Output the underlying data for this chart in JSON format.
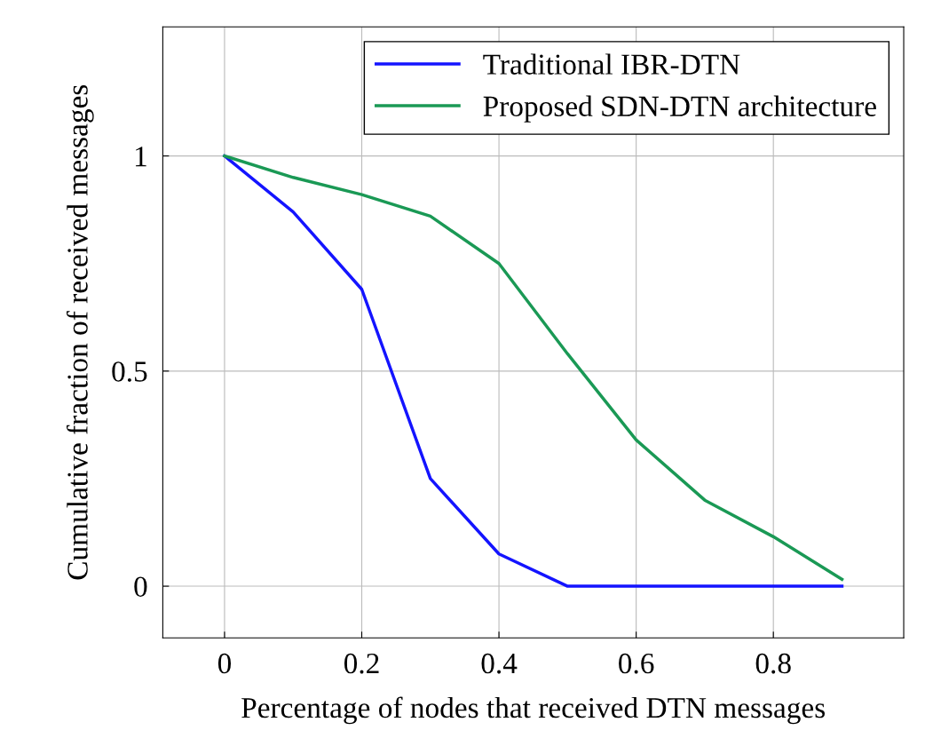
{
  "chart_data": {
    "type": "line",
    "xlabel": "Percentage of nodes that received DTN messages",
    "ylabel": "Cumulative fraction of received messages",
    "x": [
      0,
      0.1,
      0.2,
      0.3,
      0.4,
      0.5,
      0.6,
      0.7,
      0.8,
      0.9
    ],
    "series": [
      {
        "name": "Traditional IBR-DTN",
        "color": "#1414ff",
        "values": [
          1,
          0.87,
          0.69,
          0.25,
          0.075,
          0,
          0,
          0,
          0,
          0
        ]
      },
      {
        "name": "Proposed SDN-DTN architecture",
        "color": "#1a9955",
        "values": [
          1,
          0.95,
          0.91,
          0.86,
          0.75,
          0.54,
          0.34,
          0.2,
          0.115,
          0.016
        ]
      }
    ],
    "xlim": [
      -0.09,
      0.99
    ],
    "ylim": [
      -0.12,
      1.3
    ],
    "xticks": [
      0,
      0.2,
      0.4,
      0.6,
      0.8
    ],
    "yticks": [
      0,
      0.5,
      1
    ],
    "grid": true,
    "legend": "top right",
    "marker": "none",
    "line_style": "solid"
  }
}
